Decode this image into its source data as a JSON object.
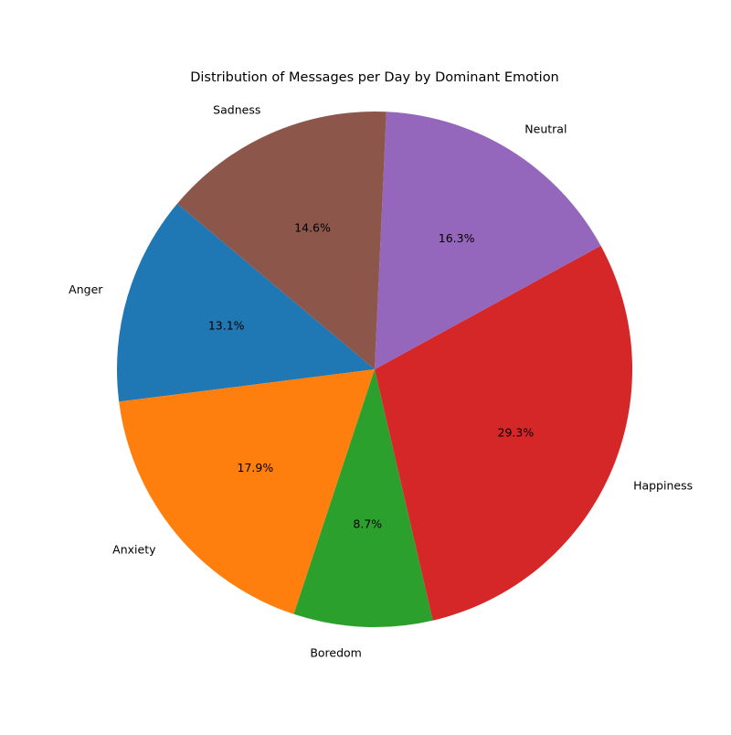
{
  "chart_data": {
    "type": "pie",
    "title": "Distribution of Messages per Day by Dominant Emotion",
    "start_angle_deg": 140,
    "direction": "counterclockwise",
    "slices": [
      {
        "label": "Anger",
        "value": 13.1,
        "pct_label": "13.1%",
        "color": "#1f77b4"
      },
      {
        "label": "Anxiety",
        "value": 17.9,
        "pct_label": "17.9%",
        "color": "#ff7f0e"
      },
      {
        "label": "Boredom",
        "value": 8.7,
        "pct_label": "8.7%",
        "color": "#2ca02c"
      },
      {
        "label": "Happiness",
        "value": 29.3,
        "pct_label": "29.3%",
        "color": "#d62728"
      },
      {
        "label": "Neutral",
        "value": 16.3,
        "pct_label": "16.3%",
        "color": "#9467bd"
      },
      {
        "label": "Sadness",
        "value": 14.6,
        "pct_label": "14.6%",
        "color": "#8c564b"
      }
    ]
  }
}
